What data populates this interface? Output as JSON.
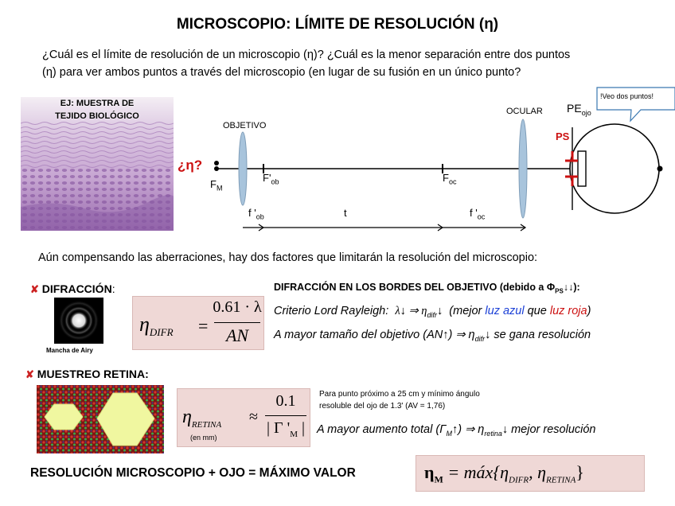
{
  "title": "MICROSCOPIO: LÍMITE DE RESOLUCIÓN (η)",
  "intro": {
    "line1": "¿Cuál es el límite de resolución de un microscopio (η)? ¿Cuál es la menor separación entre dos puntos",
    "line2": "(η) para ver ambos puntos a través del microscopio (en lugar de su fusión en un único punto?"
  },
  "sample": {
    "label_line1": "EJ: MUESTRA DE",
    "label_line2": "TEJIDO BIOLÓGICO"
  },
  "diagram": {
    "eta_label": "¿η?",
    "fm_label": "F",
    "fm_sub": "M",
    "objetivo": "OBJETIVO",
    "fob_label": "F'",
    "fob_sub": "ob",
    "foc_label": "F",
    "foc_sub": "oc",
    "ocular": "OCULAR",
    "pe_label": "PE",
    "pe_sub": "ojo",
    "ps_label": "PS",
    "speech": "!Veo dos puntos!",
    "fprime_ob": "f '",
    "fprime_ob_sub": "ob",
    "t_label": "t",
    "fprime_oc": "f '",
    "fprime_oc_sub": "oc"
  },
  "aberrations_text": "Aún compensando las aberraciones, hay dos factores que limitarán la resolución del microscopio:",
  "difraccion": {
    "mark": "✘",
    "heading": "DIFRACCIÓN",
    "colon": ":",
    "airy_caption": "Mancha de Airy",
    "formula_lhs": "η",
    "formula_sub": "DIFR",
    "formula_num": "0.61 · λ",
    "formula_den": "AN",
    "bordes_title": "DIFRACCIÓN EN LOS BORDES DEL OBJETIVO (debido a",
    "bordes_phi": "Φ",
    "bordes_phi_sub": "PS",
    "bordes_arrows": "↓↓",
    "bordes_end": "):",
    "rayleigh": "Criterio Lord Rayleigh:",
    "rayleigh_math": "λ↓ ⇒ η",
    "rayleigh_sub": "difr",
    "rayleigh_arrow": "↓",
    "rayleigh_paren_open": "(mejor",
    "luz_azul": "luz azul",
    "que": "que",
    "luz_roja": "luz roja",
    "paren_close": ")",
    "mayor_obj": "A mayor tamaño del objetivo (AN",
    "mayor_obj_mid": "↑) ⇒ η",
    "mayor_obj_sub": "difr",
    "mayor_obj_end": "↓  se gana resolución"
  },
  "retina": {
    "mark": "✘",
    "heading": "MUESTREO RETINA:",
    "formula_lhs": "η",
    "formula_sub": "RETINA",
    "formula_approx": "≈",
    "formula_num": "0.1",
    "formula_den": "| Γ '",
    "formula_den_sub": "M",
    "formula_den_end": " |",
    "units": "(en mm)",
    "note_line1": "Para punto próximo a 25 cm y mínimo ángulo",
    "note_line2": "resoluble del ojo de 1.3' (AV = 1,76)",
    "mayor_aumento": "A mayor aumento total (Γ",
    "mayor_aumento_sub": "M",
    "mayor_aumento_mid": "↑) ⇒ η",
    "mayor_aumento_sub2": "retina",
    "mayor_aumento_end": "↓  mejor resolución"
  },
  "conclusion": {
    "text": "RESOLUCIÓN MICROSCOPIO + OJO  = MÁXIMO VALOR",
    "lhs": "η",
    "lhs_sub": "M",
    "eq": "= máx{η",
    "sub1": "DIFR",
    "comma": ", η",
    "sub2": "RETINA",
    "close": "}"
  },
  "colors": {
    "lens": "#a8c4dc",
    "accent_red": "#cc1111",
    "accent_blue": "#1a3fd6",
    "formula_bg": "#efd8d6",
    "tissue": "#b58ac0",
    "retina_bg": "#7a1a14",
    "retina_hex": "#f0f7a0"
  }
}
